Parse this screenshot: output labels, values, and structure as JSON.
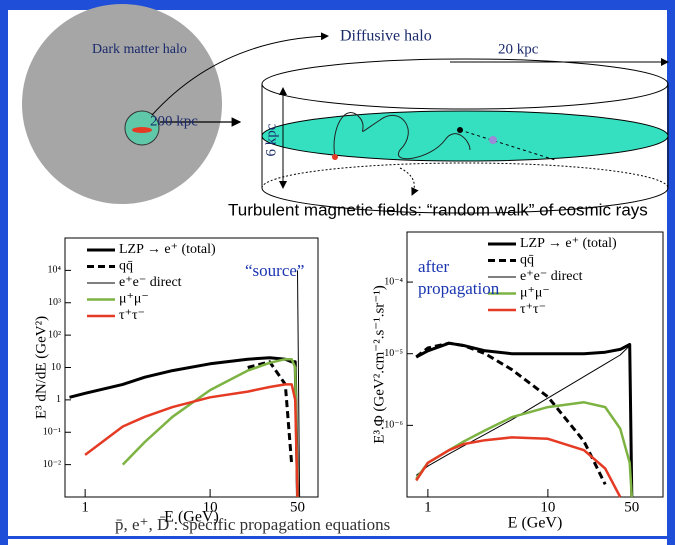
{
  "diagram": {
    "halo_label": "Dark matter halo",
    "halo_size": "200 kpc",
    "diffusive_halo": "Diffusive halo",
    "disk_radius": "20 kpc",
    "disk_height": "6 kpc",
    "caption": "Turbulent magnetic fields:  “random walk” of cosmic rays"
  },
  "footer": "p̄, e⁺, D̄ : specific propagation equations",
  "chart_data": [
    {
      "type": "line",
      "x_label": "E (GeV)",
      "y_label": "E³ dN/dE  (GeV²)",
      "annotations": [
        "“source”"
      ],
      "annotation_color": "#1a35b0",
      "xlog": true,
      "ylog": true,
      "xlim": [
        0.69,
        73
      ],
      "ylim": [
        0.001,
        100000
      ],
      "xticks": [
        1,
        10,
        50
      ],
      "yticks": [
        {
          "value": 0.01,
          "label": "10⁻²"
        },
        {
          "value": 0.1,
          "label": "10⁻¹"
        },
        1,
        10,
        {
          "value": 100,
          "label": "10²"
        },
        {
          "value": 1000,
          "label": "10³"
        },
        {
          "value": 10000,
          "label": "10⁴"
        }
      ],
      "legend": "upper left",
      "x": [
        0.75,
        1,
        2,
        3,
        5,
        10,
        20,
        30,
        40,
        45,
        48,
        50,
        52
      ],
      "series": [
        {
          "name": "LZP → e⁺ (total)",
          "color": "#000000",
          "width": 3,
          "dash": false,
          "values": [
            1.2,
            1.6,
            3,
            5,
            8,
            13,
            18,
            20,
            18,
            15,
            15,
            0.001,
            null
          ]
        },
        {
          "name": "qq̄",
          "color": "#000000",
          "width": 3,
          "dash": true,
          "values": [
            null,
            null,
            null,
            null,
            null,
            null,
            10,
            15,
            3,
            0.01,
            null,
            null,
            null
          ]
        },
        {
          "name": "e⁺e⁻ direct",
          "color": "#000000",
          "width": 1,
          "dash": false,
          "values": [
            null,
            null,
            null,
            null,
            null,
            null,
            null,
            null,
            null,
            null,
            null,
            10000,
            0.001
          ]
        },
        {
          "name": "μ⁺μ⁻",
          "color": "#7cb342",
          "width": 2.5,
          "dash": false,
          "values": [
            null,
            null,
            0.01,
            0.05,
            0.3,
            2,
            8,
            14,
            18,
            18,
            10,
            0.001,
            null
          ]
        },
        {
          "name": "τ⁺τ⁻",
          "color": "#e53a24",
          "width": 2.5,
          "dash": false,
          "values": [
            null,
            0.02,
            0.15,
            0.3,
            0.6,
            1.2,
            1.8,
            2.5,
            3,
            3,
            1,
            0.001,
            null
          ]
        }
      ]
    },
    {
      "type": "line",
      "x_label": "E (GeV)",
      "y_label": "E³.Φ (GeV².cm⁻².s⁻¹.sr⁻¹)",
      "annotations": [
        "after",
        "propagation"
      ],
      "annotation_color": "#1a35b0",
      "xlog": true,
      "ylog": true,
      "xlim": [
        0.67,
        91
      ],
      "ylim": [
        1e-07,
        0.0005
      ],
      "xticks": [
        1,
        10,
        50
      ],
      "yticks": [
        {
          "value": 1e-06,
          "label": "10⁻⁶"
        },
        {
          "value": 1e-05,
          "label": "10⁻⁵"
        },
        {
          "value": 0.0001,
          "label": "10⁻⁴"
        }
      ],
      "legend": "upper right",
      "x": [
        0.8,
        1,
        1.5,
        2,
        3,
        5,
        10,
        20,
        30,
        40,
        48,
        50
      ],
      "series": [
        {
          "name": "LZP → e⁺ (total)",
          "color": "#000000",
          "width": 3,
          "dash": false,
          "values": [
            9e-06,
            1.1e-05,
            1.4e-05,
            1.3e-05,
            1.1e-05,
            1e-05,
            1e-05,
            1e-05,
            1.05e-05,
            1.15e-05,
            1.35e-05,
            1e-07
          ]
        },
        {
          "name": "qq̄",
          "color": "#000000",
          "width": 3,
          "dash": true,
          "values": [
            9e-06,
            1.2e-05,
            1.4e-05,
            1.3e-05,
            1e-05,
            6e-06,
            2.5e-06,
            6e-07,
            1.5e-07,
            null,
            null,
            null
          ]
        },
        {
          "name": "e⁺e⁻ direct",
          "color": "#000000",
          "width": 1,
          "dash": false,
          "values": [
            2e-07,
            2.7e-07,
            4e-07,
            5.2e-07,
            7.5e-07,
            1.2e-06,
            2.4e-06,
            4.8e-06,
            7.2e-06,
            9.6e-06,
            1.3e-05,
            1e-07
          ]
        },
        {
          "name": "μ⁺μ⁻",
          "color": "#7cb342",
          "width": 2.5,
          "dash": false,
          "values": [
            1.8e-07,
            3e-07,
            4.5e-07,
            6e-07,
            8.5e-07,
            1.3e-06,
            1.8e-06,
            2.1e-06,
            1.8e-06,
            9e-07,
            3e-07,
            1e-07
          ]
        },
        {
          "name": "τ⁺τ⁻",
          "color": "#e53a24",
          "width": 2.5,
          "dash": false,
          "values": [
            1.7e-07,
            3e-07,
            4.5e-07,
            5.5e-07,
            6.2e-07,
            6.8e-07,
            6.5e-07,
            4.5e-07,
            2.5e-07,
            1e-07,
            null,
            null
          ]
        }
      ]
    }
  ]
}
